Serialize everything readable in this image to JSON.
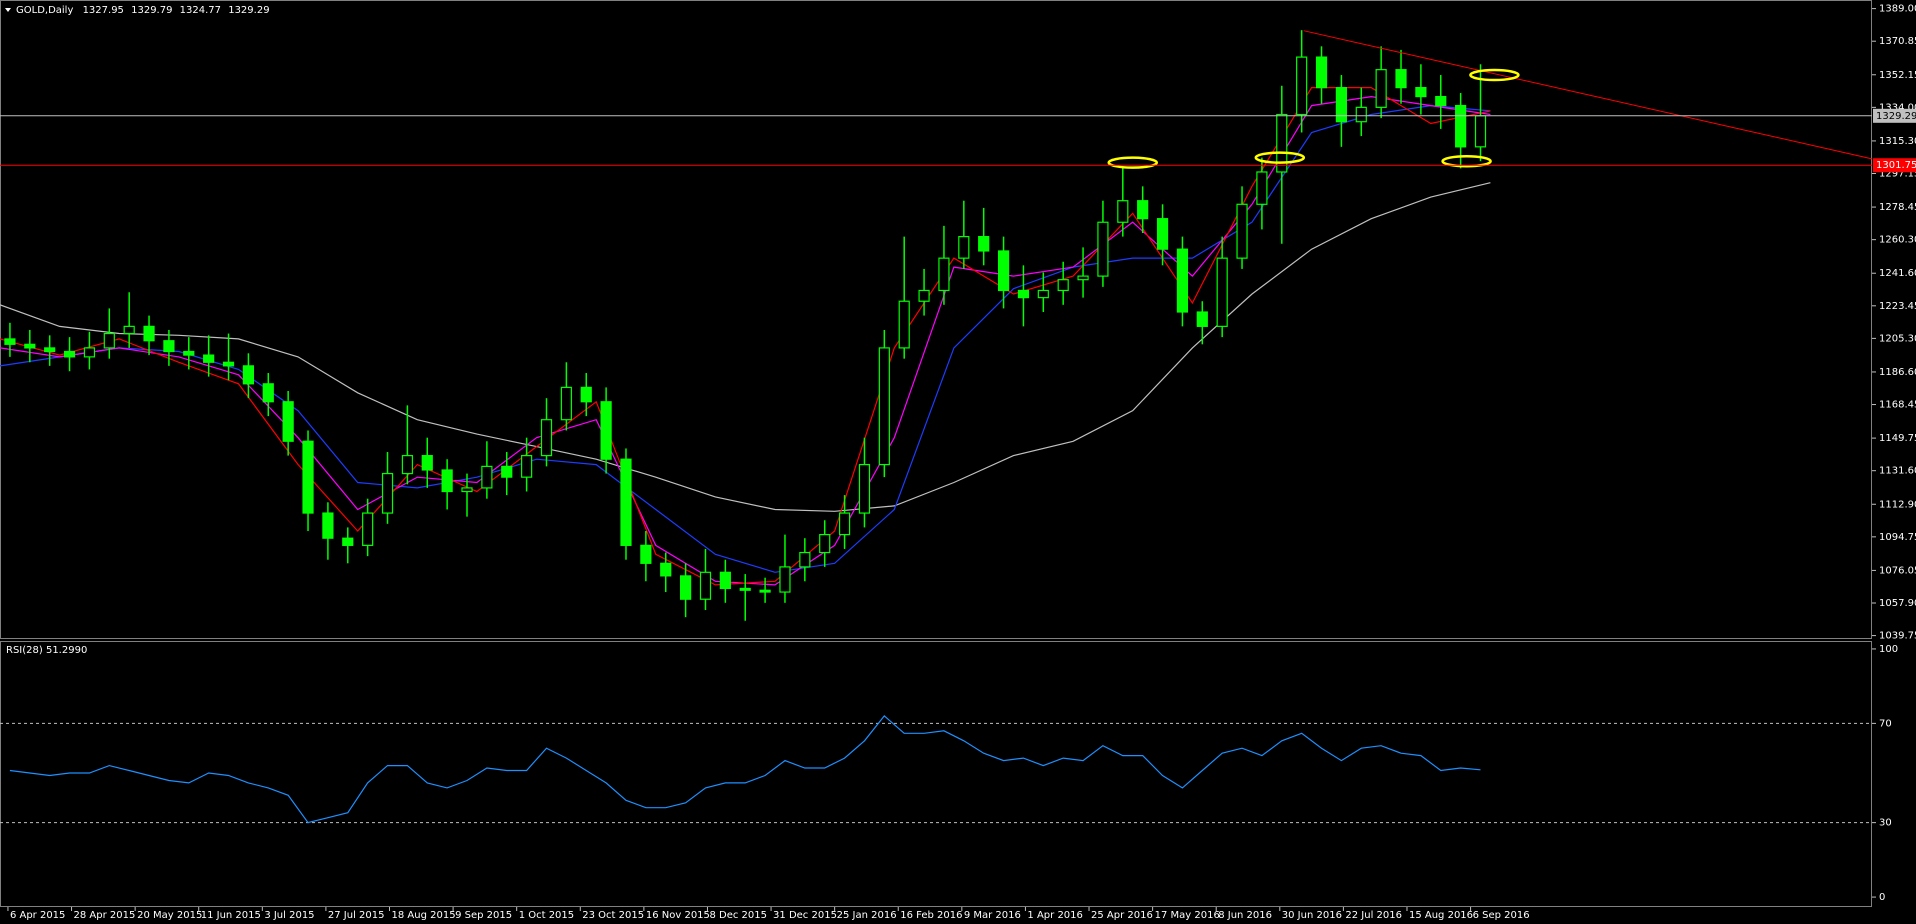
{
  "chart_data": [
    {
      "type": "candlestick",
      "title": "GOLD,Daily",
      "header_values": [
        1327.95,
        1329.79,
        1324.77,
        1329.29
      ],
      "color": "#00ff00",
      "xlim": [
        0,
        471
      ],
      "ylim": [
        1038.4,
        1393.8
      ],
      "yticks": [
        {
          "value": 1389,
          "label": "1389.00"
        },
        1370.85,
        1352.15,
        {
          "value": 1334,
          "label": "1334.00"
        },
        {
          "value": 1315.3,
          "label": "1315.30"
        },
        1297.15,
        1278.45,
        {
          "value": 1260.3,
          "label": "1260.30"
        },
        {
          "value": 1241.6,
          "label": "1241.60"
        },
        1223.45,
        {
          "value": 1205.3,
          "label": "1205.30"
        },
        {
          "value": 1186.6,
          "label": "1186.60"
        },
        1168.45,
        1149.75,
        {
          "value": 1131.6,
          "label": "1131.60"
        },
        {
          "value": 1112.9,
          "label": "1112.90"
        },
        1094.75,
        1076.05,
        {
          "value": 1057.9,
          "label": "1057.90"
        },
        1039.75
      ],
      "x": [
        2.5,
        7.5,
        12.5,
        17.5,
        22.5,
        27.5,
        32.5,
        37.5,
        42.5,
        47.5,
        52.5,
        57.5,
        62.5,
        67.5,
        72.5,
        77.5,
        82.5,
        87.5,
        92.5,
        97.5,
        102.5,
        107.5,
        112.5,
        117.5,
        122.5,
        127.5,
        132.5,
        137.5,
        142.5,
        147.5,
        152.5,
        157.5,
        162.5,
        167.5,
        172.5,
        177.5,
        182.5,
        187.5,
        192.5,
        197.5,
        202.5,
        207.5,
        212.5,
        217.5,
        222.5,
        227.5,
        232.5,
        237.5,
        242.5,
        247.5,
        252.5,
        257.5,
        262.5,
        267.5,
        272.5,
        277.5,
        282.5,
        287.5,
        292.5,
        297.5,
        302.5,
        307.5,
        312.5,
        317.5,
        322.5,
        327.5,
        332.5,
        337.5,
        342.5,
        347.5,
        352.5,
        357.5,
        362.5,
        367.5,
        372.5
      ],
      "open": [
        1205,
        1202,
        1200,
        1198,
        1195,
        1200,
        1208,
        1212,
        1204,
        1198,
        1196,
        1192,
        1190,
        1180,
        1170,
        1148,
        1108,
        1094,
        1090,
        1108,
        1130,
        1140,
        1132,
        1120,
        1122,
        1134,
        1128,
        1140,
        1160,
        1178,
        1170,
        1138,
        1090,
        1080,
        1073,
        1060,
        1075,
        1066,
        1065,
        1064,
        1078,
        1086,
        1096,
        1108,
        1135,
        1200,
        1226,
        1232,
        1250,
        1262,
        1254,
        1232,
        1228,
        1232,
        1238,
        1240,
        1270,
        1282,
        1272,
        1255,
        1220,
        1212,
        1250,
        1280,
        1298,
        1330,
        1362,
        1345,
        1326,
        1334,
        1355,
        1345,
        1340,
        1335,
        1312
      ],
      "high": [
        1214,
        1210,
        1207,
        1206,
        1209,
        1222,
        1231,
        1218,
        1210,
        1206,
        1207,
        1208,
        1197,
        1186,
        1176,
        1154,
        1114,
        1100,
        1116,
        1142,
        1168,
        1150,
        1138,
        1130,
        1148,
        1142,
        1150,
        1172,
        1192,
        1186,
        1178,
        1144,
        1098,
        1086,
        1080,
        1088,
        1082,
        1074,
        1072,
        1096,
        1094,
        1104,
        1118,
        1150,
        1210,
        1262,
        1244,
        1268,
        1282,
        1278,
        1262,
        1246,
        1242,
        1248,
        1256,
        1282,
        1301,
        1290,
        1280,
        1262,
        1226,
        1262,
        1290,
        1306,
        1346,
        1377,
        1368,
        1352,
        1345,
        1368,
        1366,
        1358,
        1352,
        1342,
        1358
      ],
      "low": [
        1195,
        1192,
        1190,
        1187,
        1188,
        1194,
        1200,
        1196,
        1190,
        1188,
        1184,
        1182,
        1172,
        1162,
        1140,
        1098,
        1082,
        1080,
        1084,
        1102,
        1124,
        1122,
        1110,
        1106,
        1116,
        1118,
        1120,
        1134,
        1154,
        1162,
        1130,
        1082,
        1070,
        1064,
        1050,
        1054,
        1058,
        1048,
        1058,
        1058,
        1070,
        1078,
        1088,
        1100,
        1128,
        1194,
        1218,
        1224,
        1244,
        1246,
        1222,
        1212,
        1220,
        1224,
        1228,
        1234,
        1262,
        1264,
        1246,
        1212,
        1202,
        1206,
        1244,
        1266,
        1258,
        1320,
        1336,
        1312,
        1318,
        1328,
        1336,
        1330,
        1322,
        1300,
        1304
      ],
      "close": [
        1202,
        1200,
        1198,
        1195,
        1200,
        1208,
        1212,
        1204,
        1198,
        1196,
        1192,
        1190,
        1180,
        1170,
        1148,
        1108,
        1094,
        1090,
        1108,
        1130,
        1140,
        1132,
        1120,
        1122,
        1134,
        1128,
        1140,
        1160,
        1178,
        1170,
        1138,
        1090,
        1080,
        1073,
        1060,
        1075,
        1066,
        1065,
        1064,
        1078,
        1086,
        1096,
        1108,
        1135,
        1200,
        1226,
        1232,
        1250,
        1262,
        1254,
        1232,
        1228,
        1232,
        1238,
        1240,
        1270,
        1282,
        1272,
        1255,
        1220,
        1212,
        1250,
        1280,
        1298,
        1330,
        1362,
        1345,
        1326,
        1334,
        1355,
        1345,
        1340,
        1335,
        1312,
        1329.29
      ],
      "ma_x": [
        0,
        15,
        30,
        45,
        60,
        75,
        90,
        105,
        120,
        135,
        150,
        165,
        180,
        195,
        210,
        225,
        240,
        255,
        270,
        285,
        300,
        315,
        330,
        345,
        360,
        375
      ],
      "moving_averages": [
        {
          "color": "#c0c0c0",
          "values": [
            1224,
            1212,
            1208,
            1207,
            1205,
            1195,
            1175,
            1160,
            1152,
            1145,
            1138,
            1128,
            1117,
            1110,
            1109,
            1112,
            1125,
            1140,
            1148,
            1165,
            1200,
            1230,
            1255,
            1272,
            1284,
            1292
          ]
        },
        {
          "color": "#1e3cff",
          "values": [
            1190,
            1195,
            1200,
            1198,
            1188,
            1165,
            1125,
            1122,
            1128,
            1138,
            1135,
            1110,
            1085,
            1075,
            1080,
            1110,
            1200,
            1233,
            1245,
            1250,
            1250,
            1270,
            1320,
            1330,
            1335,
            1332
          ]
        },
        {
          "color": "#ff00ff",
          "values": [
            1200,
            1195,
            1200,
            1195,
            1185,
            1150,
            1110,
            1128,
            1125,
            1150,
            1160,
            1090,
            1070,
            1068,
            1090,
            1150,
            1245,
            1240,
            1245,
            1270,
            1240,
            1280,
            1335,
            1340,
            1335,
            1330
          ]
        },
        {
          "color": "#ff0000",
          "values": [
            1205,
            1196,
            1205,
            1192,
            1180,
            1135,
            1098,
            1135,
            1120,
            1145,
            1170,
            1085,
            1068,
            1070,
            1098,
            1200,
            1250,
            1230,
            1240,
            1275,
            1225,
            1290,
            1345,
            1345,
            1325,
            1332
          ]
        }
      ],
      "price_line": {
        "value": 1329.29,
        "color": "#c0c0c0"
      },
      "level_line": {
        "value": 1301.75,
        "color": "#ff0000"
      },
      "trendline": {
        "color": "#ff0000",
        "start": [
          328,
          1376.7
        ],
        "end": [
          471,
          1305.3
        ]
      },
      "highlights": {
        "color": "#ffff00",
        "points": [
          {
            "x": 285,
            "y": 1303.2
          },
          {
            "x": 322,
            "y": 1306
          },
          {
            "x": 376,
            "y": 1352
          },
          {
            "x": 369,
            "y": 1304
          }
        ]
      }
    },
    {
      "type": "line",
      "title": "RSI(28) 51.2990",
      "color": "#1e90ff",
      "xlim": [
        0,
        471
      ],
      "ylim": [
        -4,
        103.2
      ],
      "yticks": [
        100,
        70,
        30,
        0
      ],
      "levels": [
        70,
        30
      ],
      "xticks": [
        {
          "value": 2,
          "label": "6 Apr 2015"
        },
        {
          "value": 18,
          "label": "28 Apr 2015"
        },
        {
          "value": 34,
          "label": "20 May 2015"
        },
        {
          "value": 50,
          "label": "11 Jun 2015"
        },
        {
          "value": 66,
          "label": "3 Jul 2015"
        },
        {
          "value": 82,
          "label": "27 Jul 2015"
        },
        {
          "value": 98,
          "label": "18 Aug 2015"
        },
        {
          "value": 114,
          "label": "9 Sep 2015"
        },
        {
          "value": 130,
          "label": "1 Oct 2015"
        },
        {
          "value": 146,
          "label": "23 Oct 2015"
        },
        {
          "value": 162,
          "label": "16 Nov 2015"
        },
        {
          "value": 178,
          "label": "8 Dec 2015"
        },
        {
          "value": 194,
          "label": "31 Dec 2015"
        },
        {
          "value": 210,
          "label": "25 Jan 2016"
        },
        {
          "value": 226,
          "label": "16 Feb 2016"
        },
        {
          "value": 242,
          "label": "9 Mar 2016"
        },
        {
          "value": 258,
          "label": "1 Apr 2016"
        },
        {
          "value": 274,
          "label": "25 Apr 2016"
        },
        {
          "value": 290,
          "label": "17 May 2016"
        },
        {
          "value": 306,
          "label": "8 Jun 2016"
        },
        {
          "value": 322,
          "label": "30 Jun 2016"
        },
        {
          "value": 338,
          "label": "22 Jul 2016"
        },
        {
          "value": 354,
          "label": "15 Aug 2016"
        },
        {
          "value": 370,
          "label": "6 Sep 2016"
        }
      ],
      "x": [
        2.5,
        7.5,
        12.5,
        17.5,
        22.5,
        27.5,
        32.5,
        37.5,
        42.5,
        47.5,
        52.5,
        57.5,
        62.5,
        67.5,
        72.5,
        77.5,
        82.5,
        87.5,
        92.5,
        97.5,
        102.5,
        107.5,
        112.5,
        117.5,
        122.5,
        127.5,
        132.5,
        137.5,
        142.5,
        147.5,
        152.5,
        157.5,
        162.5,
        167.5,
        172.5,
        177.5,
        182.5,
        187.5,
        192.5,
        197.5,
        202.5,
        207.5,
        212.5,
        217.5,
        222.5,
        227.5,
        232.5,
        237.5,
        242.5,
        247.5,
        252.5,
        257.5,
        262.5,
        267.5,
        272.5,
        277.5,
        282.5,
        287.5,
        292.5,
        297.5,
        302.5,
        307.5,
        312.5,
        317.5,
        322.5,
        327.5,
        332.5,
        337.5,
        342.5,
        347.5,
        352.5,
        357.5,
        362.5,
        367.5,
        372.5
      ],
      "values": [
        51,
        50,
        49,
        50,
        50,
        53,
        51,
        49,
        47,
        46,
        50,
        49,
        46,
        44,
        41,
        30,
        32,
        34,
        46,
        53,
        53,
        46,
        44,
        47,
        52,
        51,
        51,
        60,
        56,
        51,
        46,
        39,
        36,
        36,
        38,
        44,
        46,
        46,
        49,
        55,
        52,
        52,
        56,
        63,
        73,
        66,
        66,
        67,
        63,
        58,
        55,
        56,
        53,
        56,
        55,
        61,
        57,
        57,
        49,
        44,
        51,
        58,
        60,
        57,
        63,
        66,
        60,
        55,
        60,
        61,
        58,
        57,
        51,
        52,
        51.299
      ]
    }
  ]
}
